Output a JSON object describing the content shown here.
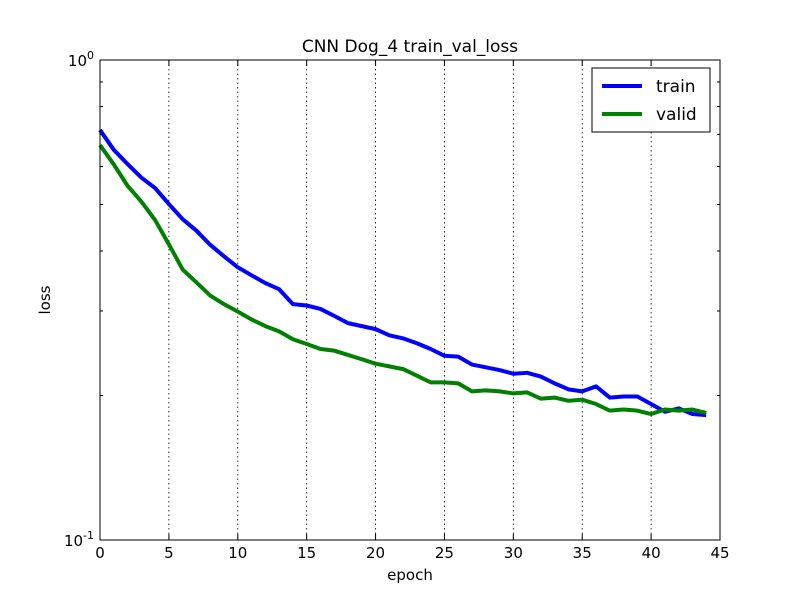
{
  "chart_data": {
    "type": "line",
    "title": "CNN Dog_4 train_val_loss",
    "xlabel": "epoch",
    "ylabel": "loss",
    "xlim": [
      0,
      45
    ],
    "ylim": [
      0.1,
      1.0
    ],
    "yscale": "log",
    "x_ticks": [
      0,
      5,
      10,
      15,
      20,
      25,
      30,
      35,
      40,
      45
    ],
    "y_ticks": [
      {
        "value": 0.1,
        "base": "10",
        "exp": "-1"
      },
      {
        "value": 1.0,
        "base": "10",
        "exp": "0"
      }
    ],
    "grid": "x-major-dotted",
    "legend": "top-right",
    "x": [
      0,
      1,
      2,
      3,
      4,
      5,
      6,
      7,
      8,
      9,
      10,
      11,
      12,
      13,
      14,
      15,
      16,
      17,
      18,
      19,
      20,
      21,
      22,
      23,
      24,
      25,
      26,
      27,
      28,
      29,
      30,
      31,
      32,
      33,
      34,
      35,
      36,
      37,
      38,
      39,
      40,
      41,
      42,
      43,
      44
    ],
    "series": [
      {
        "name": "train",
        "color": "#0000ff",
        "values": [
          0.715,
          0.65,
          0.607,
          0.569,
          0.541,
          0.501,
          0.466,
          0.441,
          0.412,
          0.39,
          0.37,
          0.356,
          0.343,
          0.333,
          0.31,
          0.308,
          0.303,
          0.293,
          0.283,
          0.279,
          0.275,
          0.267,
          0.263,
          0.257,
          0.25,
          0.242,
          0.241,
          0.232,
          0.229,
          0.226,
          0.222,
          0.223,
          0.219,
          0.212,
          0.206,
          0.204,
          0.209,
          0.198,
          0.199,
          0.199,
          0.192,
          0.185,
          0.188,
          0.183,
          0.182
        ]
      },
      {
        "name": "valid",
        "color": "#008000",
        "values": [
          0.665,
          0.606,
          0.547,
          0.507,
          0.464,
          0.413,
          0.366,
          0.344,
          0.323,
          0.31,
          0.299,
          0.288,
          0.279,
          0.272,
          0.262,
          0.256,
          0.25,
          0.248,
          0.243,
          0.238,
          0.233,
          0.23,
          0.227,
          0.22,
          0.213,
          0.213,
          0.212,
          0.204,
          0.205,
          0.204,
          0.202,
          0.203,
          0.197,
          0.198,
          0.195,
          0.196,
          0.192,
          0.186,
          0.187,
          0.186,
          0.183,
          0.187,
          0.186,
          0.187,
          0.184
        ]
      }
    ]
  }
}
